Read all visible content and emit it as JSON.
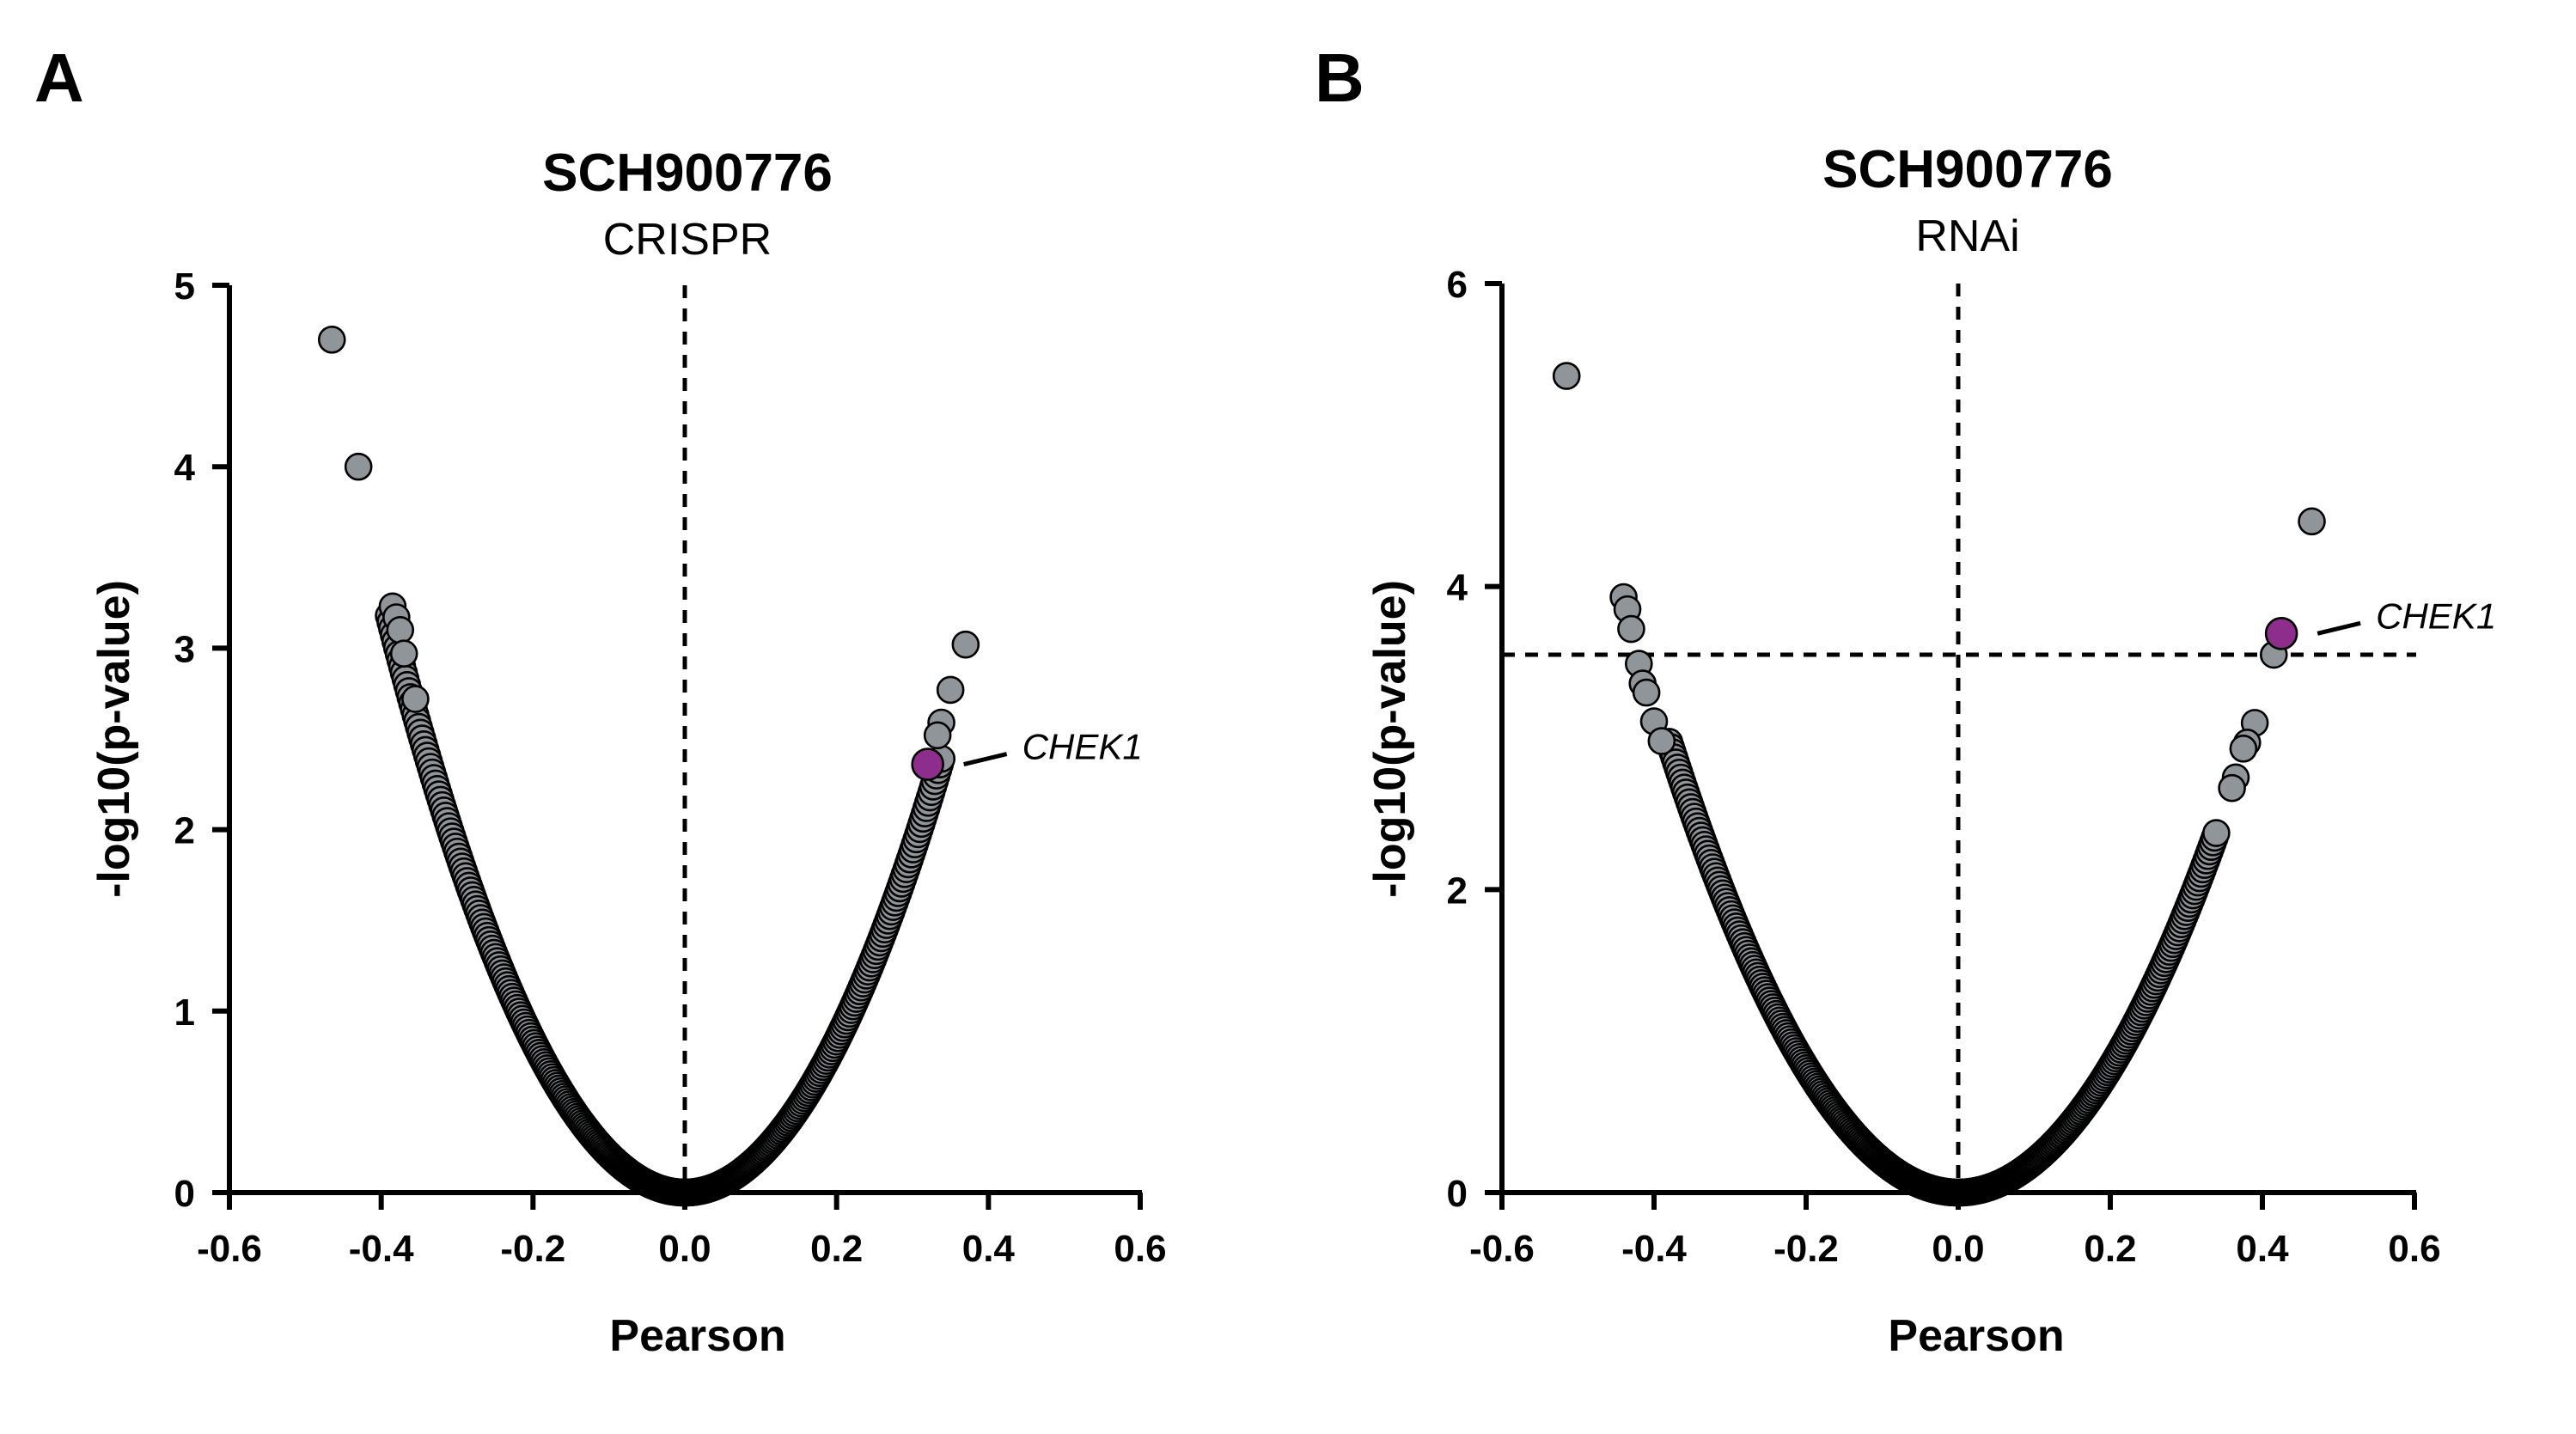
{
  "chart_data": [
    {
      "panel": "A",
      "type": "scatter",
      "title": "SCH900776",
      "subtitle": "CRISPR",
      "xlabel": "Pearson",
      "ylabel": "-log10(p-value)",
      "xlim": [
        -0.6,
        0.6
      ],
      "ylim": [
        0,
        5
      ],
      "xticks": [
        "-0.6",
        "-0.4",
        "-0.2",
        "0.0",
        "0.2",
        "0.4",
        "0.6"
      ],
      "yticks": [
        "0",
        "1",
        "2",
        "3",
        "4",
        "5"
      ],
      "vline_x": 0.0,
      "point_color": "#8f9598",
      "highlight_color": "#8e2e8c",
      "curve": {
        "x_min": -0.39,
        "x_max": 0.34,
        "scale": 20.9
      },
      "points": [
        [
          -0.465,
          4.7
        ],
        [
          -0.43,
          4.0
        ],
        [
          -0.385,
          3.23
        ],
        [
          -0.38,
          3.17
        ],
        [
          -0.375,
          3.1
        ],
        [
          -0.37,
          2.97
        ],
        [
          -0.355,
          2.72
        ],
        [
          0.37,
          3.02
        ],
        [
          0.35,
          2.77
        ],
        [
          0.338,
          2.59
        ],
        [
          0.333,
          2.52
        ]
      ],
      "highlight": {
        "label": "CHEK1",
        "x": 0.32,
        "y": 2.36
      }
    },
    {
      "panel": "B",
      "type": "scatter",
      "title": "SCH900776",
      "subtitle": "RNAi",
      "xlabel": "Pearson",
      "ylabel": "-log10(p-value)",
      "xlim": [
        -0.6,
        0.6
      ],
      "ylim": [
        0,
        6
      ],
      "xticks": [
        "-0.6",
        "-0.4",
        "-0.2",
        "0.0",
        "0.2",
        "0.4",
        "0.6"
      ],
      "yticks": [
        "0",
        "2",
        "4",
        "6"
      ],
      "vline_x": 0.0,
      "hline_y": 3.55,
      "point_color": "#8f9598",
      "highlight_color": "#8e2e8c",
      "curve": {
        "x_min": -0.38,
        "x_max": 0.34,
        "scale": 20.6
      },
      "points": [
        [
          -0.515,
          5.39
        ],
        [
          -0.44,
          3.93
        ],
        [
          -0.435,
          3.85
        ],
        [
          -0.43,
          3.72
        ],
        [
          -0.42,
          3.49
        ],
        [
          -0.415,
          3.36
        ],
        [
          -0.41,
          3.3
        ],
        [
          -0.4,
          3.11
        ],
        [
          -0.39,
          2.98
        ],
        [
          0.465,
          4.43
        ],
        [
          0.39,
          3.1
        ],
        [
          0.38,
          2.97
        ],
        [
          0.375,
          2.93
        ],
        [
          0.365,
          2.74
        ],
        [
          0.36,
          2.67
        ],
        [
          0.415,
          3.55
        ]
      ],
      "highlight": {
        "label": "CHEK1",
        "x": 0.425,
        "y": 3.69
      }
    }
  ]
}
